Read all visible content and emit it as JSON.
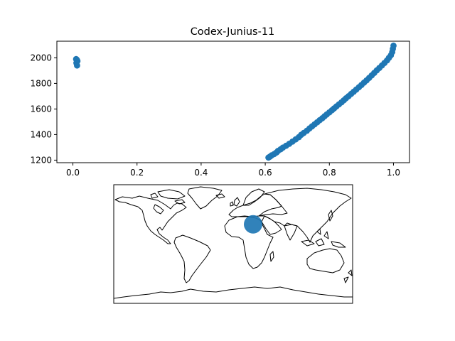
{
  "colors": {
    "marker": "#1f77b4",
    "axes": "#000000",
    "background": "#ffffff"
  },
  "chart_data": [
    {
      "type": "scatter",
      "title": "Codex-Junius-11",
      "xlabel": "",
      "ylabel": "",
      "xlim": [
        -0.05,
        1.05
      ],
      "ylim": [
        1180,
        2130
      ],
      "xticks": [
        0.0,
        0.2,
        0.4,
        0.6,
        0.8,
        1.0
      ],
      "xtick_labels": [
        "0.0",
        "0.2",
        "0.4",
        "0.6",
        "0.8",
        "1.0"
      ],
      "yticks": [
        1200,
        1400,
        1600,
        1800,
        2000
      ],
      "ytick_labels": [
        "1200",
        "1400",
        "1600",
        "1800",
        "2000"
      ],
      "grid": false,
      "points": [
        [
          0.01,
          1990
        ],
        [
          0.012,
          1985
        ],
        [
          0.014,
          1975
        ],
        [
          0.011,
          1960
        ],
        [
          0.013,
          1940
        ],
        [
          0.61,
          1220
        ],
        [
          0.615,
          1228
        ],
        [
          0.62,
          1238
        ],
        [
          0.628,
          1248
        ],
        [
          0.635,
          1260
        ],
        [
          0.64,
          1272
        ],
        [
          0.648,
          1285
        ],
        [
          0.655,
          1298
        ],
        [
          0.665,
          1312
        ],
        [
          0.675,
          1328
        ],
        [
          0.685,
          1345
        ],
        [
          0.695,
          1362
        ],
        [
          0.705,
          1380
        ],
        [
          0.712,
          1398
        ],
        [
          0.72,
          1412
        ],
        [
          0.73,
          1430
        ],
        [
          0.738,
          1448
        ],
        [
          0.746,
          1464
        ],
        [
          0.754,
          1480
        ],
        [
          0.762,
          1496
        ],
        [
          0.77,
          1512
        ],
        [
          0.778,
          1528
        ],
        [
          0.785,
          1543
        ],
        [
          0.792,
          1558
        ],
        [
          0.8,
          1574
        ],
        [
          0.808,
          1590
        ],
        [
          0.815,
          1605
        ],
        [
          0.822,
          1620
        ],
        [
          0.83,
          1636
        ],
        [
          0.838,
          1652
        ],
        [
          0.845,
          1668
        ],
        [
          0.852,
          1684
        ],
        [
          0.86,
          1700
        ],
        [
          0.868,
          1718
        ],
        [
          0.876,
          1735
        ],
        [
          0.884,
          1752
        ],
        [
          0.892,
          1770
        ],
        [
          0.9,
          1788
        ],
        [
          0.908,
          1806
        ],
        [
          0.916,
          1824
        ],
        [
          0.924,
          1843
        ],
        [
          0.932,
          1862
        ],
        [
          0.94,
          1882
        ],
        [
          0.948,
          1902
        ],
        [
          0.956,
          1921
        ],
        [
          0.964,
          1940
        ],
        [
          0.972,
          1960
        ],
        [
          0.98,
          1980
        ],
        [
          0.986,
          2000
        ],
        [
          0.992,
          2020
        ],
        [
          0.996,
          2045
        ],
        [
          0.998,
          2070
        ],
        [
          1.0,
          2095
        ]
      ]
    },
    {
      "type": "map",
      "projection": "plate-carree",
      "extent": [
        -180,
        180,
        -90,
        90
      ],
      "markers": [
        {
          "lon": 30,
          "lat": 30,
          "size": "large"
        }
      ]
    }
  ]
}
